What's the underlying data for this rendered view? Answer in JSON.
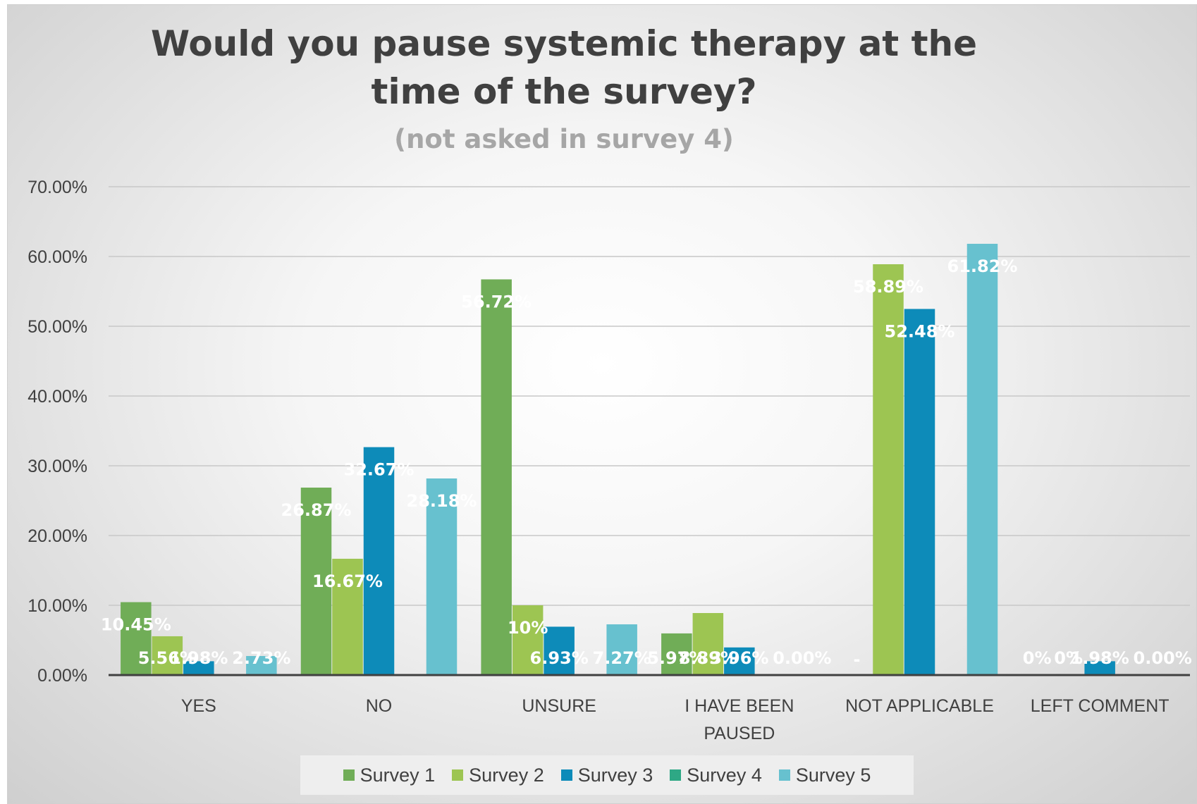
{
  "chart_data": {
    "type": "bar",
    "title_lines": [
      "Would you pause systemic therapy at the",
      "time of the survey?"
    ],
    "subtitle": "(not asked in survey 4)",
    "categories": [
      [
        "YES"
      ],
      [
        "NO"
      ],
      [
        "UNSURE"
      ],
      [
        "I HAVE BEEN",
        "PAUSED"
      ],
      [
        "NOT APPLICABLE"
      ],
      [
        "LEFT COMMENT"
      ]
    ],
    "y_ticks": [
      "0.00%",
      "10.00%",
      "20.00%",
      "30.00%",
      "40.00%",
      "50.00%",
      "60.00%",
      "70.00%"
    ],
    "ylim": [
      0,
      70
    ],
    "grid": true,
    "legend_position": "bottom",
    "series": [
      {
        "name": "Survey 1",
        "color": "#70ad57",
        "values": [
          10.45,
          26.87,
          56.72,
          5.97,
          0,
          0
        ],
        "labels": [
          "10.45%",
          "26.87%",
          "56.72%",
          "5.97%",
          "-",
          "0%"
        ]
      },
      {
        "name": "Survey 2",
        "color": "#9dc552",
        "values": [
          5.56,
          16.67,
          10,
          8.89,
          58.89,
          0
        ],
        "labels": [
          "5.56%",
          "16.67%",
          "10%",
          "8.89%",
          "58.89%",
          "0%"
        ]
      },
      {
        "name": "Survey 3",
        "color": "#0d8bb9",
        "values": [
          1.98,
          32.67,
          6.93,
          3.96,
          52.48,
          1.98
        ],
        "labels": [
          "1.98%",
          "32.67%",
          "6.93%",
          "3.96%",
          "52.48%",
          "1.98%"
        ]
      },
      {
        "name": "Survey 4",
        "color": "#2ea885",
        "values": [
          0,
          0,
          0,
          0,
          0,
          0
        ],
        "labels": [
          "",
          "",
          "",
          "",
          "",
          ""
        ]
      },
      {
        "name": "Survey 5",
        "color": "#67c1cf",
        "values": [
          2.73,
          28.18,
          7.27,
          0,
          61.82,
          0
        ],
        "labels": [
          "2.73%",
          "28.18%",
          "7.27%",
          "0.00%",
          "61.82%",
          "0.00%"
        ]
      }
    ]
  }
}
